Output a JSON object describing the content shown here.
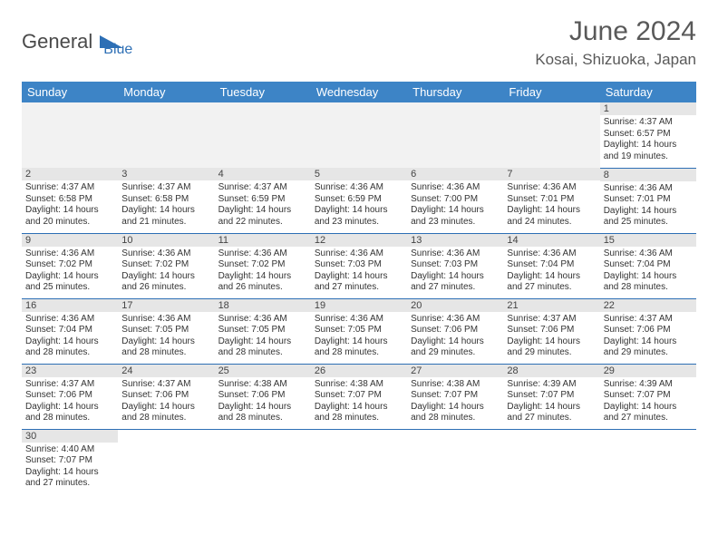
{
  "brand": {
    "part1": "General",
    "part2": "Blue",
    "logo_color": "#2d6fb5"
  },
  "title": "June 2024",
  "location": "Kosai, Shizuoka, Japan",
  "colors": {
    "header_bg": "#3d84c6",
    "header_text": "#ffffff",
    "row_divider": "#2d6fb5",
    "daynum_bg": "#e6e6e6",
    "title_color": "#595959"
  },
  "fonts": {
    "title_size": 30,
    "location_size": 17,
    "th_size": 13,
    "cell_size": 10
  },
  "weekdays": [
    "Sunday",
    "Monday",
    "Tuesday",
    "Wednesday",
    "Thursday",
    "Friday",
    "Saturday"
  ],
  "weeks": [
    [
      null,
      null,
      null,
      null,
      null,
      null,
      {
        "day": 1,
        "sunrise": "4:37 AM",
        "sunset": "6:57 PM",
        "daylight_h": 14,
        "daylight_m": 19
      }
    ],
    [
      {
        "day": 2,
        "sunrise": "4:37 AM",
        "sunset": "6:58 PM",
        "daylight_h": 14,
        "daylight_m": 20
      },
      {
        "day": 3,
        "sunrise": "4:37 AM",
        "sunset": "6:58 PM",
        "daylight_h": 14,
        "daylight_m": 21
      },
      {
        "day": 4,
        "sunrise": "4:37 AM",
        "sunset": "6:59 PM",
        "daylight_h": 14,
        "daylight_m": 22
      },
      {
        "day": 5,
        "sunrise": "4:36 AM",
        "sunset": "6:59 PM",
        "daylight_h": 14,
        "daylight_m": 23
      },
      {
        "day": 6,
        "sunrise": "4:36 AM",
        "sunset": "7:00 PM",
        "daylight_h": 14,
        "daylight_m": 23
      },
      {
        "day": 7,
        "sunrise": "4:36 AM",
        "sunset": "7:01 PM",
        "daylight_h": 14,
        "daylight_m": 24
      },
      {
        "day": 8,
        "sunrise": "4:36 AM",
        "sunset": "7:01 PM",
        "daylight_h": 14,
        "daylight_m": 25
      }
    ],
    [
      {
        "day": 9,
        "sunrise": "4:36 AM",
        "sunset": "7:02 PM",
        "daylight_h": 14,
        "daylight_m": 25
      },
      {
        "day": 10,
        "sunrise": "4:36 AM",
        "sunset": "7:02 PM",
        "daylight_h": 14,
        "daylight_m": 26
      },
      {
        "day": 11,
        "sunrise": "4:36 AM",
        "sunset": "7:02 PM",
        "daylight_h": 14,
        "daylight_m": 26
      },
      {
        "day": 12,
        "sunrise": "4:36 AM",
        "sunset": "7:03 PM",
        "daylight_h": 14,
        "daylight_m": 27
      },
      {
        "day": 13,
        "sunrise": "4:36 AM",
        "sunset": "7:03 PM",
        "daylight_h": 14,
        "daylight_m": 27
      },
      {
        "day": 14,
        "sunrise": "4:36 AM",
        "sunset": "7:04 PM",
        "daylight_h": 14,
        "daylight_m": 27
      },
      {
        "day": 15,
        "sunrise": "4:36 AM",
        "sunset": "7:04 PM",
        "daylight_h": 14,
        "daylight_m": 28
      }
    ],
    [
      {
        "day": 16,
        "sunrise": "4:36 AM",
        "sunset": "7:04 PM",
        "daylight_h": 14,
        "daylight_m": 28
      },
      {
        "day": 17,
        "sunrise": "4:36 AM",
        "sunset": "7:05 PM",
        "daylight_h": 14,
        "daylight_m": 28
      },
      {
        "day": 18,
        "sunrise": "4:36 AM",
        "sunset": "7:05 PM",
        "daylight_h": 14,
        "daylight_m": 28
      },
      {
        "day": 19,
        "sunrise": "4:36 AM",
        "sunset": "7:05 PM",
        "daylight_h": 14,
        "daylight_m": 28
      },
      {
        "day": 20,
        "sunrise": "4:36 AM",
        "sunset": "7:06 PM",
        "daylight_h": 14,
        "daylight_m": 29
      },
      {
        "day": 21,
        "sunrise": "4:37 AM",
        "sunset": "7:06 PM",
        "daylight_h": 14,
        "daylight_m": 29
      },
      {
        "day": 22,
        "sunrise": "4:37 AM",
        "sunset": "7:06 PM",
        "daylight_h": 14,
        "daylight_m": 29
      }
    ],
    [
      {
        "day": 23,
        "sunrise": "4:37 AM",
        "sunset": "7:06 PM",
        "daylight_h": 14,
        "daylight_m": 28
      },
      {
        "day": 24,
        "sunrise": "4:37 AM",
        "sunset": "7:06 PM",
        "daylight_h": 14,
        "daylight_m": 28
      },
      {
        "day": 25,
        "sunrise": "4:38 AM",
        "sunset": "7:06 PM",
        "daylight_h": 14,
        "daylight_m": 28
      },
      {
        "day": 26,
        "sunrise": "4:38 AM",
        "sunset": "7:07 PM",
        "daylight_h": 14,
        "daylight_m": 28
      },
      {
        "day": 27,
        "sunrise": "4:38 AM",
        "sunset": "7:07 PM",
        "daylight_h": 14,
        "daylight_m": 28
      },
      {
        "day": 28,
        "sunrise": "4:39 AM",
        "sunset": "7:07 PM",
        "daylight_h": 14,
        "daylight_m": 27
      },
      {
        "day": 29,
        "sunrise": "4:39 AM",
        "sunset": "7:07 PM",
        "daylight_h": 14,
        "daylight_m": 27
      }
    ],
    [
      {
        "day": 30,
        "sunrise": "4:40 AM",
        "sunset": "7:07 PM",
        "daylight_h": 14,
        "daylight_m": 27
      },
      null,
      null,
      null,
      null,
      null,
      null
    ]
  ],
  "labels": {
    "sunrise": "Sunrise:",
    "sunset": "Sunset:",
    "daylight": "Daylight:",
    "hours": "hours",
    "and": "and",
    "minutes": "minutes."
  }
}
